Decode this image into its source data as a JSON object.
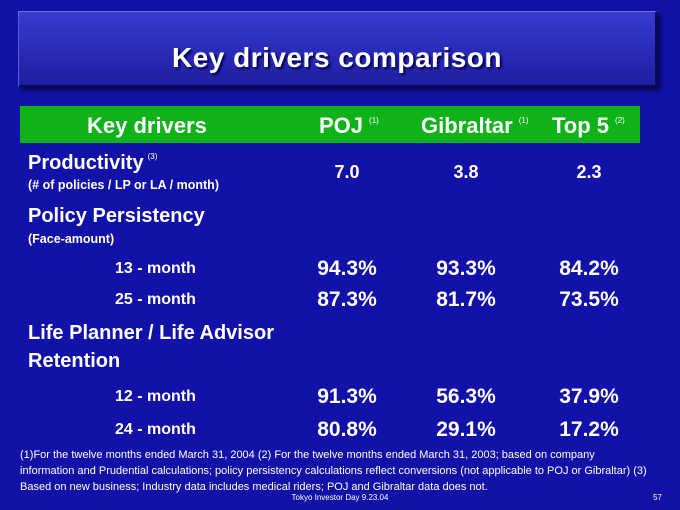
{
  "title": "Key drivers comparison",
  "header": {
    "key_drivers": "Key drivers",
    "poj": "POJ",
    "poj_note": "(1)",
    "gibraltar": "Gibraltar",
    "gibraltar_note": "(1)",
    "top5": "Top 5",
    "top5_note": "(2)"
  },
  "productivity": {
    "label": "Productivity",
    "note": "(3)",
    "sublabel": "(# of policies / LP  or LA /  month)",
    "poj": "7.0",
    "gibraltar": "3.8",
    "top5": "2.3"
  },
  "persistency": {
    "label": "Policy Persistency",
    "sublabel": "(Face-amount)",
    "rows": [
      {
        "label": "13 - month",
        "poj": "94.3%",
        "gibraltar": "93.3%",
        "top5": "84.2%"
      },
      {
        "label": "25 - month",
        "poj": "87.3%",
        "gibraltar": "81.7%",
        "top5": "73.5%"
      }
    ]
  },
  "retention": {
    "label_line1": "Life Planner / Life Advisor",
    "label_line2": "Retention",
    "rows": [
      {
        "label": "12 - month",
        "poj": "91.3%",
        "gibraltar": "56.3%",
        "top5": "37.9%"
      },
      {
        "label": "24 - month",
        "poj": "80.8%",
        "gibraltar": "29.1%",
        "top5": "17.2%"
      }
    ]
  },
  "footnote": "(1)For the twelve months ended  March 31, 2004 (2) For the twelve months ended  March 31, 2003; based on company information and Prudential calculations; policy persistency calculations reflect conversions (not applicable to POJ or Gibraltar) (3) Based on new business; Industry data includes medical riders; POJ and Gibraltar data does not.",
  "footer": "Tokyo Investor Day 9.23.04",
  "page_number": "57"
}
